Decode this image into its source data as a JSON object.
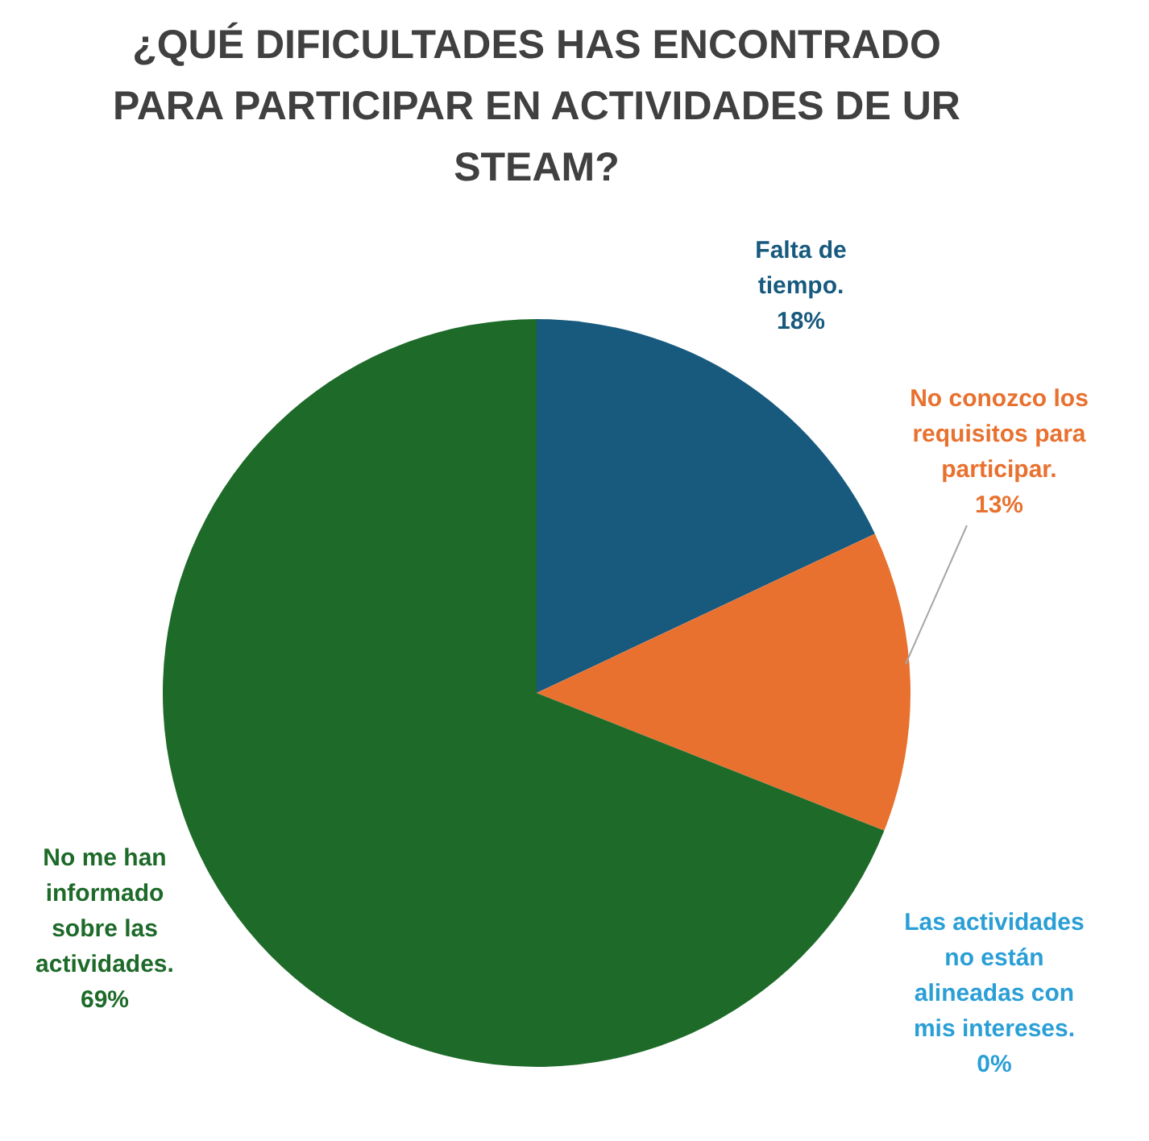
{
  "chart_data": {
    "type": "pie",
    "title": "¿QUÉ DIFICULTADES HAS ENCONTRADO\nPARA PARTICIPAR EN ACTIVIDADES DE UR\nSTEAM?",
    "categories": [
      "Falta de\ntiempo.",
      "No conozco los\nrequisitos para\nparticipar.",
      "Las actividades\nno están\nalineadas con\nmis intereses.",
      "No me han\ninformado\nsobre las\nactividades."
    ],
    "values": [
      18,
      13,
      0,
      69
    ],
    "colors": [
      "#175a7e",
      "#e8712f",
      "#2a9fd6",
      "#1d6a29"
    ],
    "value_labels": [
      "18%",
      "13%",
      "0%",
      "69%"
    ],
    "legend": false
  }
}
